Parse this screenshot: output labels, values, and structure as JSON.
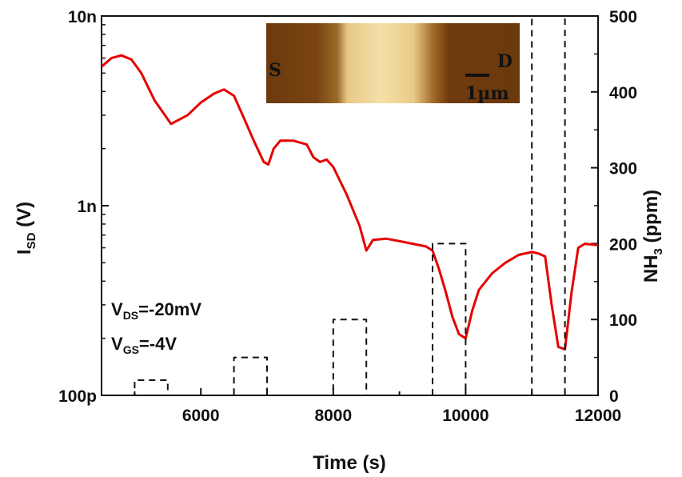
{
  "chart_data": {
    "type": "line",
    "xlabel": "Time (s)",
    "ylabel_left": {
      "main": "I",
      "sub": "SD",
      "rest": " (V)"
    },
    "ylabel_right": {
      "main": "NH",
      "sub": "3",
      "rest": " (ppm)"
    },
    "xlim": [
      4500,
      12000
    ],
    "x_ticks": [
      6000,
      8000,
      10000,
      12000
    ],
    "x_tick_labels": [
      "6000",
      "8000",
      "10000",
      "12000"
    ],
    "y_left_scale": "log",
    "y_left_lim": [
      1e-10,
      1e-08
    ],
    "y_left_ticks": [
      1e-10,
      1e-09,
      1e-08
    ],
    "y_left_tick_labels": [
      "100p",
      "1n",
      "10n"
    ],
    "y_right_lim": [
      0,
      500
    ],
    "y_right_ticks": [
      0,
      100,
      200,
      300,
      400,
      500
    ],
    "y_right_tick_labels": [
      "0",
      "100",
      "200",
      "300",
      "400",
      "500"
    ],
    "series": [
      {
        "axis": "left",
        "color": "#e60000",
        "style": "solid",
        "x": [
          4500,
          4650,
          4800,
          4950,
          5100,
          5300,
          5550,
          5800,
          6000,
          6200,
          6350,
          6500,
          6650,
          6800,
          6950,
          7020,
          7100,
          7200,
          7400,
          7600,
          7700,
          7800,
          7900,
          8000,
          8200,
          8400,
          8500,
          8600,
          8800,
          9000,
          9200,
          9400,
          9500,
          9600,
          9700,
          9800,
          9900,
          10000,
          10100,
          10200,
          10400,
          10600,
          10800,
          11000,
          11100,
          11200,
          11300,
          11400,
          11500,
          11600,
          11700,
          11800,
          12000
        ],
        "y": [
          5.4e-09,
          6e-09,
          6.2e-09,
          5.9e-09,
          5e-09,
          3.6e-09,
          2.7e-09,
          3e-09,
          3.5e-09,
          3.9e-09,
          4.1e-09,
          3.8e-09,
          2.9e-09,
          2.2e-09,
          1.7e-09,
          1.65e-09,
          2e-09,
          2.2e-09,
          2.2e-09,
          2.1e-09,
          1.8e-09,
          1.7e-09,
          1.75e-09,
          1.6e-09,
          1.15e-09,
          7.8e-10,
          5.8e-10,
          6.6e-10,
          6.7e-10,
          6.5e-10,
          6.3e-10,
          6.1e-10,
          5.8e-10,
          4.6e-10,
          3.5e-10,
          2.6e-10,
          2.1e-10,
          2e-10,
          2.8e-10,
          3.6e-10,
          4.4e-10,
          5e-10,
          5.5e-10,
          5.7e-10,
          5.6e-10,
          5.4e-10,
          3e-10,
          1.8e-10,
          1.75e-10,
          3.5e-10,
          6e-10,
          6.3e-10,
          6.2e-10
        ]
      },
      {
        "axis": "right",
        "color": "#111111",
        "style": "dashed",
        "x": [
          4600,
          5000,
          5000,
          5500,
          5500,
          6500,
          6500,
          7000,
          7000,
          8000,
          8000,
          8500,
          8500,
          9500,
          9500,
          10000,
          10000,
          11000,
          11000,
          11500,
          11500,
          11950
        ],
        "y": [
          0,
          0,
          20,
          20,
          0,
          0,
          50,
          50,
          0,
          0,
          100,
          100,
          0,
          0,
          200,
          200,
          0,
          0,
          500,
          500,
          0,
          0
        ]
      }
    ],
    "annotations": {
      "vds": {
        "main": "V",
        "sub": "DS",
        "rest": "=-20mV"
      },
      "vgs": {
        "main": "V",
        "sub": "GS",
        "rest": "=-4V"
      }
    },
    "inset": {
      "label_left": "S",
      "label_right": "D",
      "scale_bar": "1µm"
    }
  }
}
